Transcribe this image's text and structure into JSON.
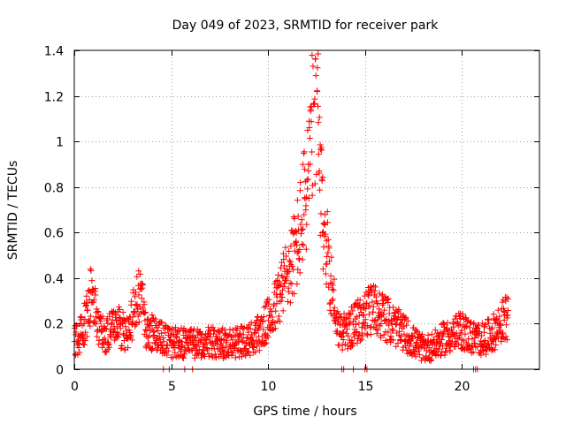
{
  "chart_data": {
    "type": "scatter",
    "title": "Day 049 of 2023, SRMTID for receiver park",
    "xlabel": "GPS time / hours",
    "ylabel": "SRMTID / TECUs",
    "xlim": [
      0,
      24
    ],
    "ylim": [
      0,
      1.4
    ],
    "xticks": [
      0,
      5,
      10,
      15,
      20
    ],
    "xtick_labels": [
      "0",
      "5",
      "10",
      "15",
      "20"
    ],
    "yticks": [
      0,
      0.2,
      0.4,
      0.6,
      0.8,
      1.0,
      1.2,
      1.4
    ],
    "ytick_labels": [
      "0",
      "0.2",
      "0.4",
      "0.6",
      "0.8",
      "1",
      "1.2",
      "1.4"
    ],
    "grid": true,
    "marker": "+",
    "marker_color": "#ff0000",
    "trend": [
      [
        0.0,
        0.12
      ],
      [
        0.3,
        0.15
      ],
      [
        0.6,
        0.22
      ],
      [
        0.8,
        0.32
      ],
      [
        1.0,
        0.28
      ],
      [
        1.3,
        0.16
      ],
      [
        1.7,
        0.15
      ],
      [
        2.2,
        0.2
      ],
      [
        2.7,
        0.15
      ],
      [
        3.1,
        0.26
      ],
      [
        3.4,
        0.33
      ],
      [
        3.7,
        0.18
      ],
      [
        4.2,
        0.15
      ],
      [
        5.0,
        0.12
      ],
      [
        6.0,
        0.11
      ],
      [
        7.0,
        0.12
      ],
      [
        8.0,
        0.11
      ],
      [
        9.0,
        0.13
      ],
      [
        9.7,
        0.17
      ],
      [
        10.3,
        0.26
      ],
      [
        10.8,
        0.38
      ],
      [
        11.2,
        0.46
      ],
      [
        11.6,
        0.58
      ],
      [
        12.0,
        0.8
      ],
      [
        12.3,
        1.05
      ],
      [
        12.5,
        1.28
      ],
      [
        12.7,
        0.75
      ],
      [
        13.0,
        0.55
      ],
      [
        13.3,
        0.35
      ],
      [
        13.6,
        0.18
      ],
      [
        14.0,
        0.16
      ],
      [
        14.5,
        0.2
      ],
      [
        15.0,
        0.24
      ],
      [
        15.5,
        0.27
      ],
      [
        16.0,
        0.23
      ],
      [
        16.5,
        0.19
      ],
      [
        17.0,
        0.16
      ],
      [
        17.5,
        0.12
      ],
      [
        18.0,
        0.09
      ],
      [
        18.5,
        0.1
      ],
      [
        19.0,
        0.13
      ],
      [
        19.5,
        0.15
      ],
      [
        20.0,
        0.17
      ],
      [
        20.5,
        0.14
      ],
      [
        21.0,
        0.13
      ],
      [
        21.5,
        0.15
      ],
      [
        22.0,
        0.2
      ],
      [
        22.4,
        0.24
      ]
    ],
    "zero_points_x": [
      4.6,
      4.9,
      5.7,
      6.1,
      13.8,
      13.9,
      14.4,
      15.0,
      15.1,
      20.6,
      20.7,
      20.8
    ],
    "x_range_hours": [
      0,
      22.4
    ]
  }
}
